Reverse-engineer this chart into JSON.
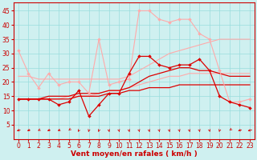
{
  "xlabel": "Vent moyen/en rafales ( km/h )",
  "background_color": "#cff0f0",
  "grid_color": "#99dddd",
  "x": [
    0,
    1,
    2,
    3,
    4,
    5,
    6,
    7,
    8,
    9,
    10,
    11,
    12,
    13,
    14,
    15,
    16,
    17,
    18,
    19,
    20,
    21,
    22,
    23
  ],
  "series": [
    {
      "color": "#ffaaaa",
      "linewidth": 0.8,
      "marker": "D",
      "markersize": 2.0,
      "y": [
        31,
        23,
        18,
        23,
        19,
        20,
        20,
        16,
        35,
        19,
        20,
        21,
        45,
        45,
        42,
        41,
        42,
        42,
        37,
        35,
        24,
        13,
        13,
        14
      ]
    },
    {
      "color": "#ffaaaa",
      "linewidth": 0.8,
      "marker": null,
      "markersize": 0,
      "y": [
        14,
        14,
        14,
        14,
        14,
        15,
        15,
        15,
        16,
        17,
        17,
        18,
        19,
        20,
        21,
        22,
        22,
        23,
        23,
        23,
        23,
        23,
        23,
        23
      ]
    },
    {
      "color": "#ffaaaa",
      "linewidth": 0.8,
      "marker": null,
      "markersize": 0,
      "y": [
        22,
        22,
        21,
        21,
        21,
        21,
        21,
        21,
        21,
        21,
        21,
        22,
        24,
        26,
        28,
        30,
        31,
        32,
        33,
        34,
        35,
        35,
        35,
        35
      ]
    },
    {
      "color": "#dd0000",
      "linewidth": 0.9,
      "marker": "D",
      "markersize": 2.0,
      "y": [
        14,
        14,
        14,
        14,
        12,
        13,
        17,
        8,
        12,
        16,
        16,
        23,
        29,
        29,
        26,
        25,
        26,
        26,
        28,
        24,
        15,
        13,
        12,
        11
      ]
    },
    {
      "color": "#dd0000",
      "linewidth": 0.9,
      "marker": null,
      "markersize": 0,
      "y": [
        14,
        14,
        14,
        14,
        14,
        14,
        15,
        15,
        15,
        16,
        16,
        17,
        17,
        18,
        18,
        18,
        19,
        19,
        19,
        19,
        19,
        19,
        19,
        19
      ]
    },
    {
      "color": "#dd0000",
      "linewidth": 0.9,
      "marker": null,
      "markersize": 0,
      "y": [
        14,
        14,
        14,
        15,
        15,
        15,
        16,
        16,
        16,
        17,
        17,
        18,
        20,
        22,
        23,
        24,
        25,
        25,
        24,
        24,
        23,
        22,
        22,
        22
      ]
    }
  ],
  "wind_arrows": {
    "y": 3.0,
    "color": "#dd0000",
    "angles_deg": [
      225,
      220,
      210,
      220,
      215,
      200,
      190,
      185,
      185,
      175,
      175,
      175,
      175,
      175,
      175,
      175,
      175,
      175,
      175,
      175,
      185,
      200,
      225,
      230
    ]
  },
  "ylim": [
    0,
    48
  ],
  "yticks": [
    5,
    10,
    15,
    20,
    25,
    30,
    35,
    40,
    45
  ],
  "tick_fontsize": 5.5,
  "label_fontsize": 6.5
}
